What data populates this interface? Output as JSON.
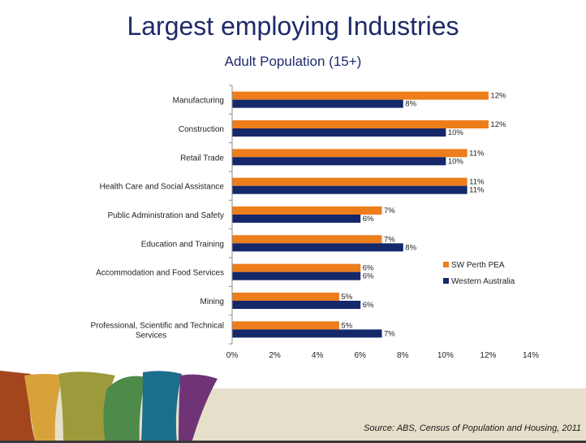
{
  "slide": {
    "title": "Largest employing Industries",
    "subtitle": "Adult Population (15+)",
    "source": "Source: ABS, Census of Population and Housing, 2011"
  },
  "colors": {
    "title": "#1f2a6b",
    "sw_perth": "#ee7d1c",
    "western_australia": "#14286a",
    "band": "#e6dfc9",
    "decor": [
      "#a3461e",
      "#d8a23a",
      "#9d9a3c",
      "#4e8a4a",
      "#1b6e8e",
      "#6e3476"
    ]
  },
  "chart_data": {
    "type": "bar",
    "orientation": "horizontal",
    "categories": [
      "Manufacturing",
      "Construction",
      "Retail Trade",
      "Health Care and Social Assistance",
      "Public Administration and Safety",
      "Education and Training",
      "Accommodation and Food Services",
      "Mining",
      "Professional, Scientific and Technical Services"
    ],
    "category_lines": [
      [
        "Manufacturing"
      ],
      [
        "Construction"
      ],
      [
        "Retail Trade"
      ],
      [
        "Health Care and Social Assistance"
      ],
      [
        "Public Administration and Safety"
      ],
      [
        "Education and Training"
      ],
      [
        "Accommodation and Food Services"
      ],
      [
        "Mining"
      ],
      [
        "Professional, Scientific and Technical",
        "Services"
      ]
    ],
    "series": [
      {
        "name": "SW Perth PEA",
        "values": [
          12,
          12,
          11,
          11,
          7,
          7,
          6,
          5,
          5
        ],
        "labels": [
          "12%",
          "12%",
          "11%",
          "11%",
          "7%",
          "7%",
          "6%",
          "5%",
          "5%"
        ]
      },
      {
        "name": "Western Australia",
        "values": [
          8,
          10,
          10,
          11,
          6,
          8,
          6,
          6,
          7
        ],
        "labels": [
          "8%",
          "10%",
          "10%",
          "11%",
          "6%",
          "8%",
          "6%",
          "6%",
          "7%"
        ]
      }
    ],
    "xlim": [
      0,
      14
    ],
    "xticks": [
      "0%",
      "2%",
      "4%",
      "6%",
      "8%",
      "10%",
      "12%",
      "14%"
    ],
    "legend": "right",
    "grid": false
  }
}
